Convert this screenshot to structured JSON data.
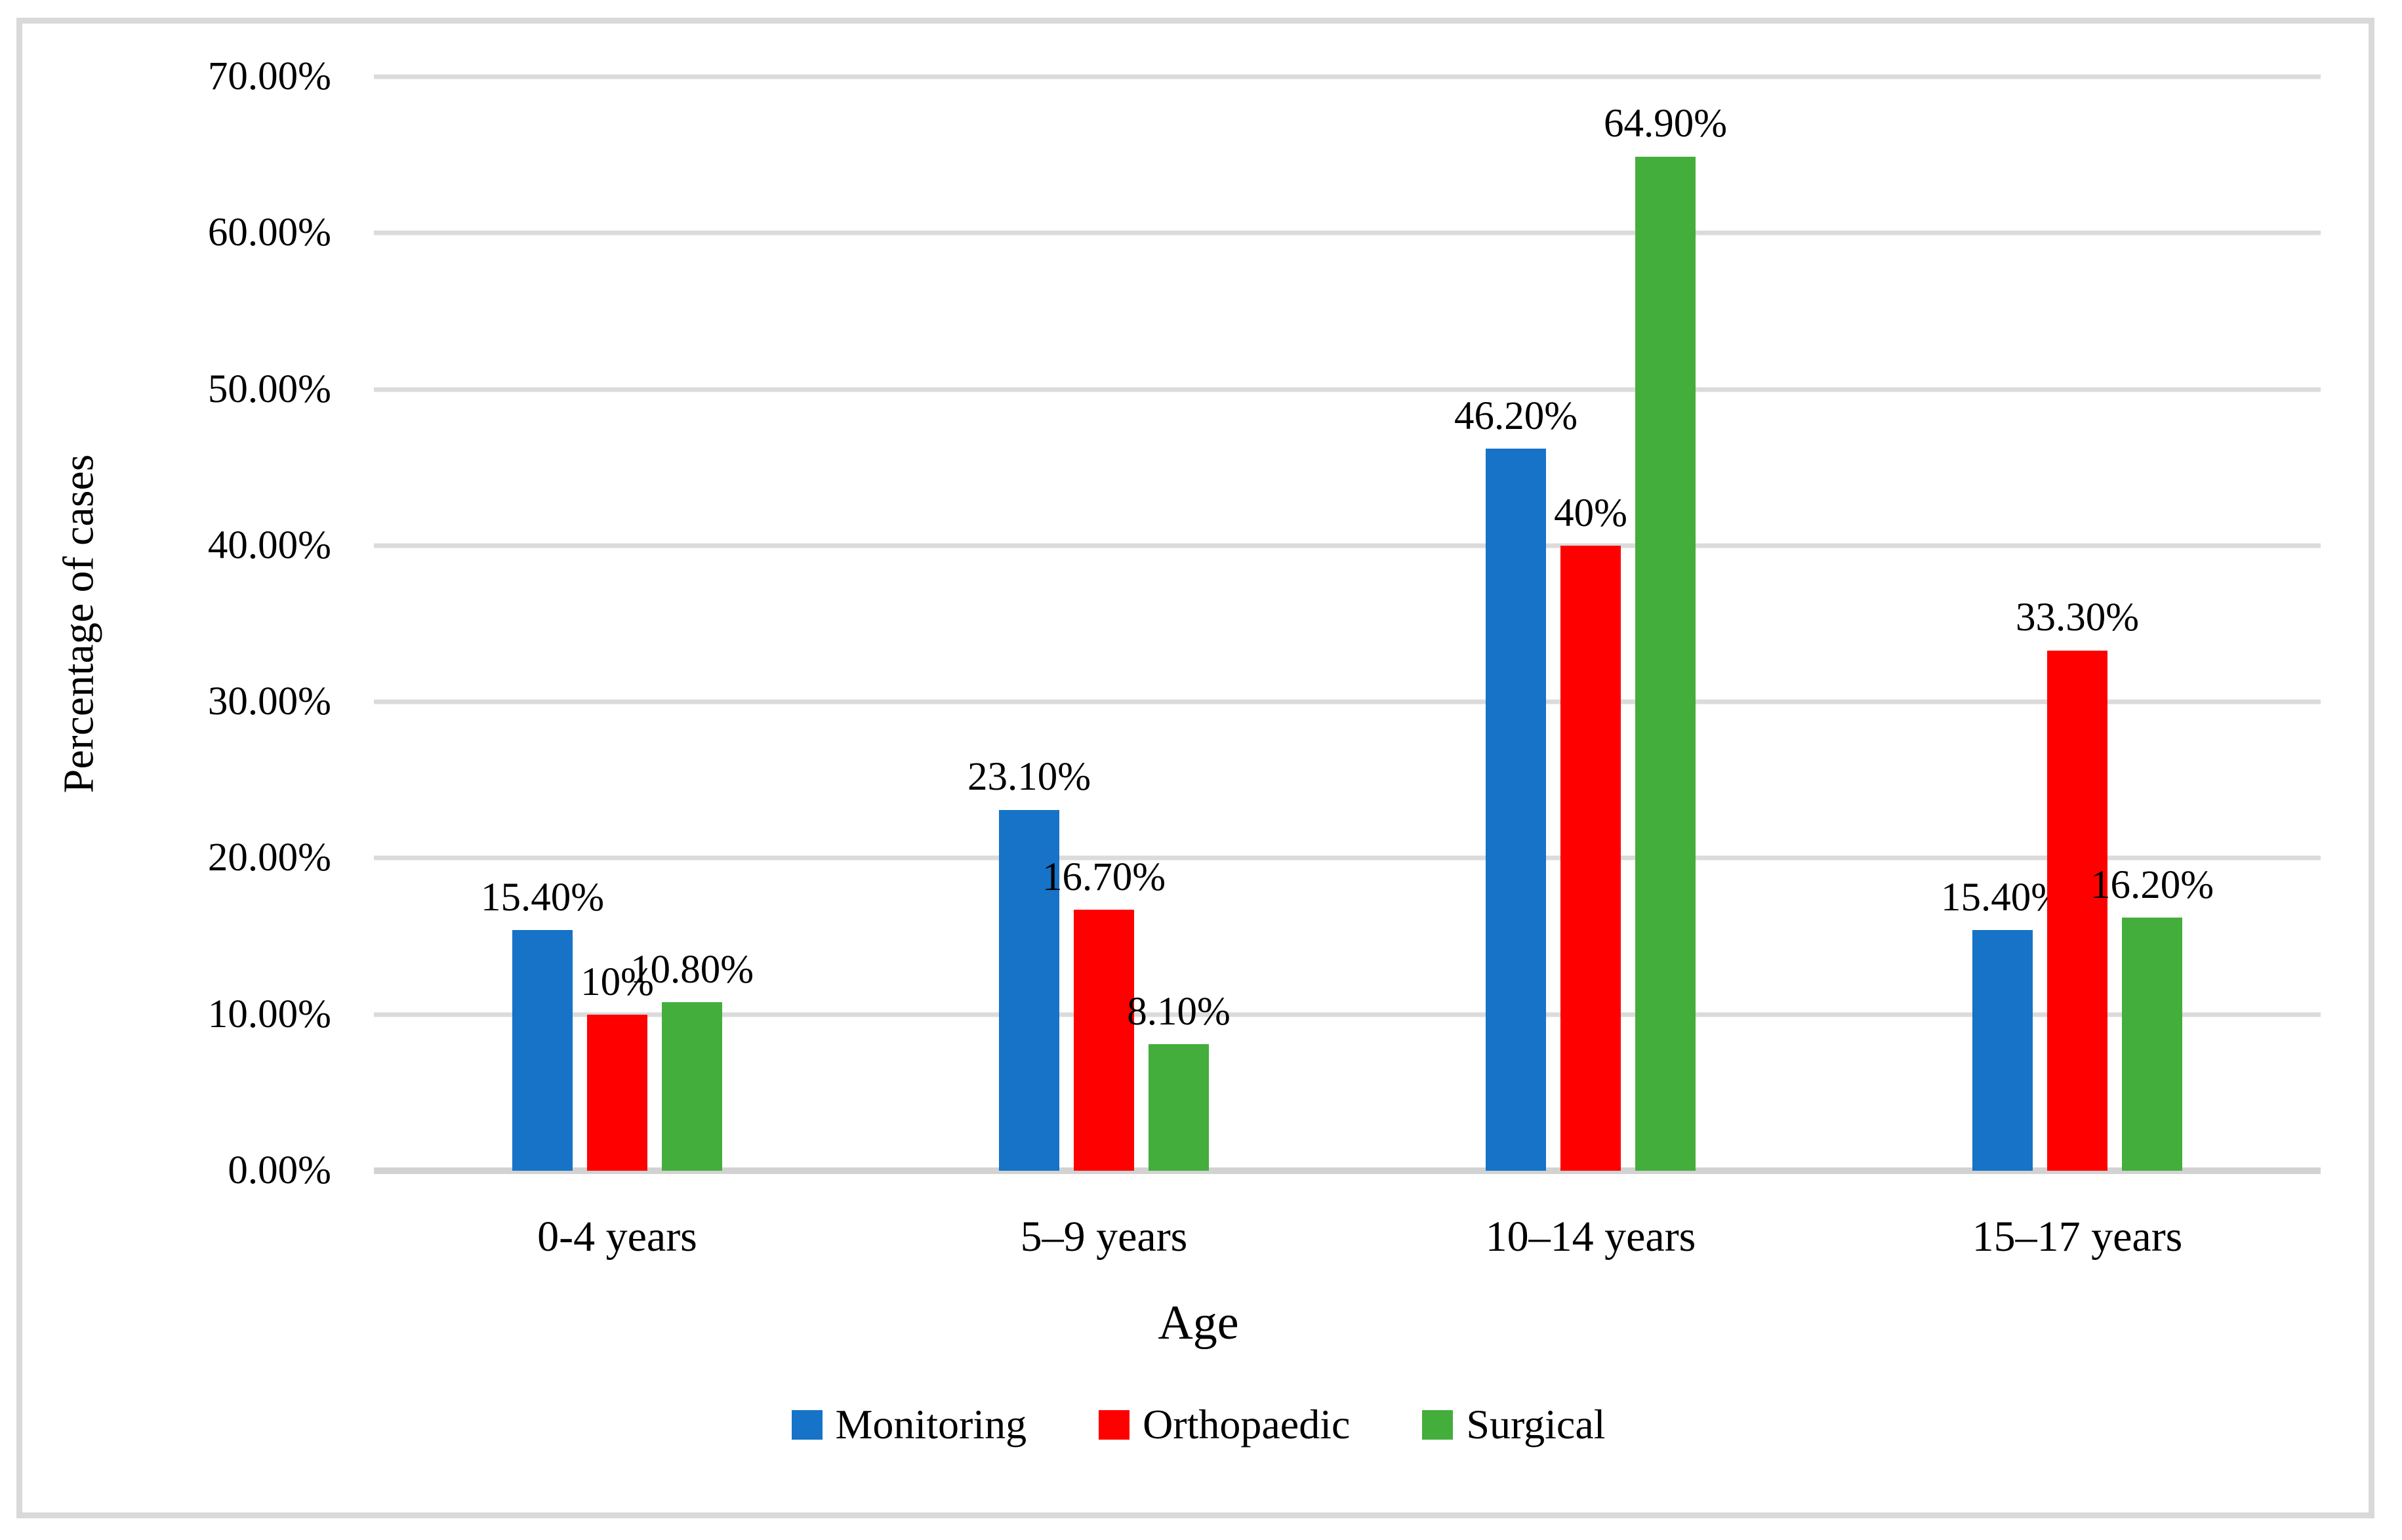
{
  "figure": {
    "background": "#FFFFFF",
    "border_color": "#D9D9D9"
  },
  "chart_data": {
    "type": "bar",
    "title": "",
    "categories": [
      "0-4 years",
      "5–9 years",
      "10–14 years",
      "15–17 years"
    ],
    "series": [
      {
        "name": "Monitoring",
        "color": "#1673C7",
        "values": [
          15.4,
          23.1,
          46.2,
          15.4
        ],
        "data_labels": [
          "15.40%",
          "23.10%",
          "46.20%",
          "15.40%"
        ]
      },
      {
        "name": "Orthopaedic",
        "color": "#FF0000",
        "values": [
          10,
          16.7,
          40,
          33.3
        ],
        "data_labels": [
          "10%",
          "16.70%",
          "40%",
          "33.30%"
        ]
      },
      {
        "name": "Surgical",
        "color": "#43AE3B",
        "values": [
          10.8,
          8.1,
          64.9,
          16.2
        ],
        "data_labels": [
          "10.80%",
          "8.10%",
          "64.90%",
          "16.20%"
        ]
      }
    ],
    "xlabel": "Age",
    "ylabel": "Percentage of cases",
    "ylim": [
      0,
      70
    ],
    "ytick_labels": [
      "70.00%",
      "60.00%",
      "50.00%",
      "40.00%",
      "30.00%",
      "20.00%",
      "10.00%",
      "0.00%"
    ],
    "grid": true,
    "gridline_color": "#DBDBDB",
    "axisline_color": "#D2D2D2",
    "legend_position": "bottom"
  }
}
